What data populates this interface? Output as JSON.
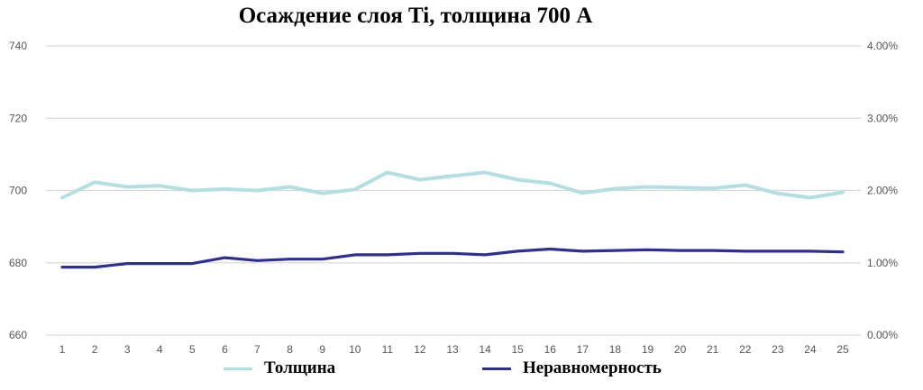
{
  "chart_data": {
    "type": "line",
    "title": "Осаждение слоя Ti, толщина 700 А",
    "xlabel": "",
    "ylabel_left": "",
    "ylabel_right": "",
    "categories": [
      "1",
      "2",
      "3",
      "4",
      "5",
      "6",
      "7",
      "8",
      "9",
      "10",
      "11",
      "12",
      "13",
      "14",
      "15",
      "16",
      "17",
      "18",
      "19",
      "20",
      "21",
      "22",
      "23",
      "24",
      "25"
    ],
    "series": [
      {
        "name": "Толщина",
        "axis": "left",
        "color": "#b3dfe3",
        "values": [
          698.0,
          702.3,
          701.0,
          701.3,
          700.0,
          700.4,
          700.0,
          701.0,
          699.2,
          700.3,
          705.0,
          703.0,
          704.0,
          705.0,
          703.0,
          702.0,
          699.3,
          700.5,
          701.0,
          700.8,
          700.6,
          701.5,
          699.2,
          698.0,
          699.5
        ]
      },
      {
        "name": "Неравномерность",
        "axis": "right",
        "color": "#2e2e96",
        "values": [
          0.94,
          0.94,
          0.99,
          0.99,
          0.99,
          1.07,
          1.03,
          1.05,
          1.05,
          1.11,
          1.11,
          1.13,
          1.13,
          1.11,
          1.16,
          1.19,
          1.16,
          1.17,
          1.18,
          1.17,
          1.17,
          1.16,
          1.16,
          1.16,
          1.15
        ],
        "unit": "%"
      }
    ],
    "ylim_left": [
      660,
      740
    ],
    "ylim_right": [
      0,
      4
    ],
    "yticks_left": [
      "740",
      "720",
      "700",
      "680",
      "660"
    ],
    "yticks_right": [
      "4.00%",
      "3.00%",
      "2.00%",
      "1.00%",
      "0.00%"
    ],
    "grid": true,
    "legend_position": "bottom"
  },
  "title": "Осаждение слоя Ti, толщина 700 А",
  "legend": {
    "items": [
      {
        "label": "Толщина",
        "color": "#b3dfe3"
      },
      {
        "label": "Неравномерность",
        "color": "#2e2e96"
      }
    ]
  }
}
